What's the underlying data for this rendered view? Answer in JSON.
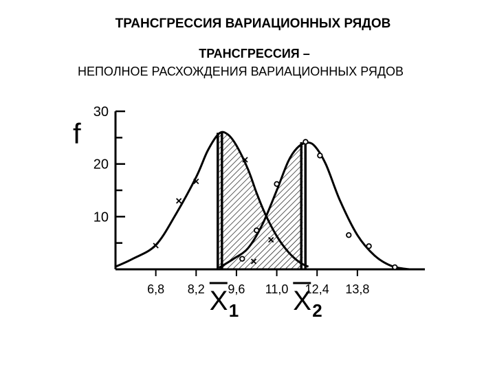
{
  "header": {
    "title": "ТРАНСГРЕССИЯ ВАРИАЦИОННЫХ РЯДОВ",
    "subtitle_line1": "ТРАНСГРЕССИЯ –",
    "subtitle_line2": "НЕПОЛНОЕ РАСХОЖДЕНИЯ ВАРИАЦИОННЫХ РЯДОВ"
  },
  "chart_data": {
    "type": "line",
    "ylabel": "f",
    "ylim": [
      0,
      30
    ],
    "y_ticks": [
      {
        "value": 30,
        "label": "30"
      },
      {
        "value": 20,
        "label": "20"
      },
      {
        "value": 10,
        "label": "10"
      }
    ],
    "xlim": [
      5.4,
      16.0
    ],
    "x_ticks": [
      {
        "value": 6.8,
        "label": "6,8"
      },
      {
        "value": 8.2,
        "label": "8,2"
      },
      {
        "value": 9.6,
        "label": "9,6"
      },
      {
        "value": 11.0,
        "label": "11,0"
      },
      {
        "value": 12.4,
        "label": "12,4"
      },
      {
        "value": 13.8,
        "label": "13,8"
      }
    ],
    "means": [
      {
        "symbol": "X",
        "sub": "1",
        "x": 9.0
      },
      {
        "symbol": "X",
        "sub": "2",
        "x": 11.9
      }
    ],
    "overlap_hatched": true,
    "series": [
      {
        "marker": "x",
        "curve_x": [
          5.4,
          6.0,
          6.8,
          7.5,
          8.2,
          8.6,
          9.0,
          9.3,
          9.6,
          10.0,
          10.3,
          10.6,
          11.0,
          11.4,
          11.8,
          12.1
        ],
        "curve_y": [
          0.5,
          2.0,
          4.6,
          10.5,
          17.5,
          22.5,
          25.8,
          25.6,
          23.5,
          19.0,
          14.5,
          10.5,
          6.3,
          3.3,
          1.3,
          0.5
        ],
        "points": [
          {
            "x": 6.8,
            "y": 4.5
          },
          {
            "x": 7.6,
            "y": 13.0
          },
          {
            "x": 8.2,
            "y": 16.7
          },
          {
            "x": 9.9,
            "y": 20.8
          },
          {
            "x": 10.2,
            "y": 1.5
          },
          {
            "x": 10.8,
            "y": 5.6
          }
        ]
      },
      {
        "marker": "o",
        "curve_x": [
          9.0,
          9.5,
          10.0,
          10.5,
          11.0,
          11.4,
          11.7,
          12.0,
          12.3,
          12.7,
          13.2,
          13.8,
          14.4,
          15.0,
          15.6
        ],
        "curve_y": [
          0.3,
          2.0,
          4.0,
          8.5,
          15.0,
          20.5,
          23.0,
          24.0,
          23.5,
          20.0,
          13.0,
          6.5,
          2.6,
          0.6,
          0.0
        ],
        "points": [
          {
            "x": 9.8,
            "y": 2.0
          },
          {
            "x": 10.3,
            "y": 7.4
          },
          {
            "x": 11.0,
            "y": 16.2
          },
          {
            "x": 12.0,
            "y": 24.2
          },
          {
            "x": 12.5,
            "y": 21.6
          },
          {
            "x": 13.5,
            "y": 6.5
          },
          {
            "x": 14.2,
            "y": 4.4
          },
          {
            "x": 15.1,
            "y": 0.4
          }
        ]
      }
    ]
  }
}
